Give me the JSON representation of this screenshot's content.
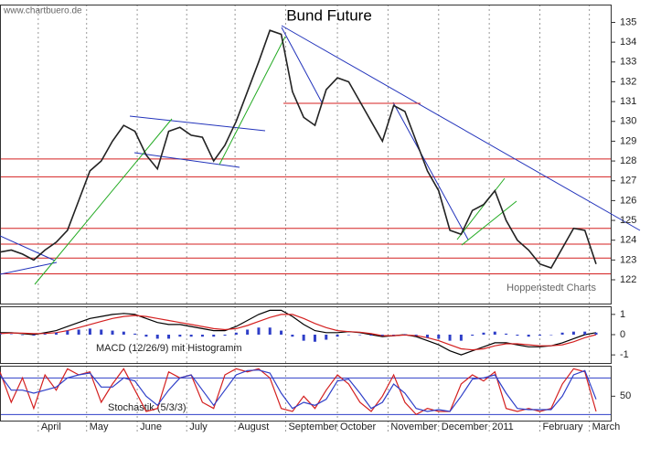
{
  "watermark": "www.chartbuero.de",
  "source": "Hoppenstedt Charts",
  "chart_data": [
    {
      "type": "line",
      "title": "Bund Future",
      "x": [
        0,
        1,
        2,
        3,
        4,
        5,
        6,
        7,
        8,
        9,
        10,
        11,
        12,
        13,
        14,
        15,
        16,
        17,
        18,
        19,
        20,
        21,
        22,
        23,
        24,
        25,
        26,
        27,
        28,
        29,
        30,
        31,
        32,
        33,
        34,
        35,
        36,
        37,
        38,
        39,
        40,
        41,
        42,
        43,
        44,
        45,
        46,
        47,
        48,
        49,
        50,
        51,
        52,
        53
      ],
      "xlim": [
        0,
        54.3
      ],
      "series": [
        {
          "color": "#222222",
          "values": [
            123.4,
            123.5,
            123.3,
            123.0,
            123.5,
            123.9,
            124.5,
            126.0,
            127.5,
            128.0,
            129.0,
            129.8,
            129.5,
            128.3,
            127.6,
            129.5,
            129.7,
            129.3,
            129.2,
            128.0,
            128.8,
            130.0,
            131.5,
            133.0,
            134.6,
            134.4,
            131.5,
            130.2,
            129.8,
            131.6,
            132.2,
            132.0,
            131.0,
            130.0,
            129.0,
            130.8,
            130.5,
            129.0,
            127.5,
            126.5,
            124.5,
            124.3,
            125.5,
            125.8,
            126.5,
            125.0,
            124.0,
            123.5,
            122.8,
            122.6,
            123.6,
            124.6,
            124.5,
            122.8
          ]
        }
      ],
      "hlines": [
        128.1,
        127.2,
        124.6,
        123.8,
        123.1,
        122.3
      ],
      "hline_color": "#d42020",
      "ylim": [
        120.8,
        135.9
      ],
      "yticks": [
        122,
        123,
        124,
        125,
        126,
        127,
        128,
        129,
        130,
        131,
        132,
        133,
        134,
        135
      ]
    },
    {
      "type": "line",
      "title": "MACD (12/26/9) mit Histogramm",
      "series": [
        {
          "color": "#000000",
          "values": [
            0.1,
            0.1,
            0.05,
            0,
            0.1,
            0.2,
            0.4,
            0.6,
            0.8,
            0.9,
            1.0,
            1.05,
            1.0,
            0.8,
            0.6,
            0.5,
            0.5,
            0.4,
            0.3,
            0.2,
            0.2,
            0.4,
            0.7,
            1.0,
            1.2,
            1.2,
            0.9,
            0.5,
            0.2,
            0.1,
            0.1,
            0.15,
            0.1,
            0,
            -0.1,
            -0.05,
            0,
            -0.1,
            -0.3,
            -0.5,
            -0.8,
            -1.0,
            -0.8,
            -0.6,
            -0.4,
            -0.4,
            -0.5,
            -0.6,
            -0.6,
            -0.55,
            -0.4,
            -0.2,
            0,
            0.1
          ]
        },
        {
          "color": "#d42020",
          "values": [
            0.05,
            0.08,
            0.07,
            0.05,
            0.06,
            0.1,
            0.2,
            0.35,
            0.5,
            0.65,
            0.8,
            0.9,
            0.95,
            0.9,
            0.8,
            0.7,
            0.6,
            0.5,
            0.4,
            0.3,
            0.25,
            0.3,
            0.45,
            0.65,
            0.85,
            1.0,
            1.0,
            0.8,
            0.55,
            0.35,
            0.2,
            0.15,
            0.12,
            0.05,
            -0.05,
            -0.05,
            -0.02,
            -0.05,
            -0.15,
            -0.3,
            -0.5,
            -0.7,
            -0.75,
            -0.7,
            -0.55,
            -0.45,
            -0.45,
            -0.5,
            -0.55,
            -0.55,
            -0.5,
            -0.35,
            -0.15,
            0.0
          ]
        },
        {
          "type": "bar",
          "color": "#2f3fc8",
          "values": [
            0.05,
            0.02,
            -0.02,
            -0.05,
            0.04,
            0.1,
            0.2,
            0.25,
            0.3,
            0.25,
            0.2,
            0.15,
            0.05,
            -0.1,
            -0.2,
            -0.2,
            -0.1,
            -0.1,
            -0.1,
            -0.1,
            -0.05,
            0.1,
            0.25,
            0.35,
            0.35,
            0.2,
            -0.1,
            -0.3,
            -0.35,
            -0.25,
            -0.1,
            0,
            -0.02,
            -0.05,
            -0.05,
            0,
            0.02,
            -0.05,
            -0.15,
            -0.2,
            -0.3,
            -0.3,
            -0.05,
            0.1,
            0.15,
            0.05,
            -0.05,
            -0.1,
            -0.05,
            0,
            0.1,
            0.15,
            0.15,
            0.1
          ]
        }
      ],
      "ylim": [
        -1.4,
        1.4
      ],
      "yticks": [
        1,
        0,
        -1
      ]
    },
    {
      "type": "line",
      "title": "Stochastik (5/3/3)",
      "series": [
        {
          "color": "#d42020",
          "values": [
            90,
            40,
            80,
            30,
            85,
            60,
            95,
            85,
            90,
            40,
            70,
            95,
            60,
            25,
            30,
            90,
            80,
            85,
            40,
            30,
            85,
            95,
            90,
            95,
            80,
            30,
            25,
            50,
            30,
            60,
            85,
            70,
            40,
            25,
            50,
            85,
            40,
            20,
            30,
            25,
            25,
            70,
            85,
            75,
            90,
            30,
            25,
            30,
            25,
            30,
            70,
            95,
            90,
            25
          ]
        },
        {
          "color": "#2f3fc8",
          "values": [
            85,
            60,
            60,
            55,
            60,
            65,
            80,
            85,
            88,
            65,
            65,
            80,
            75,
            50,
            35,
            60,
            80,
            85,
            60,
            35,
            60,
            85,
            92,
            93,
            88,
            55,
            30,
            40,
            35,
            45,
            75,
            78,
            55,
            30,
            40,
            70,
            55,
            30,
            25,
            28,
            25,
            50,
            78,
            80,
            85,
            55,
            30,
            28,
            28,
            28,
            50,
            85,
            92,
            45
          ]
        }
      ],
      "hlines": [
        80,
        20
      ],
      "hline_color": "#2f3fc8",
      "ylim": [
        10,
        100
      ],
      "yticks": [
        50
      ],
      "xticks": [
        {
          "value": 3.4,
          "label": "April"
        },
        {
          "value": 7.7,
          "label": "May"
        },
        {
          "value": 12.2,
          "label": "June"
        },
        {
          "value": 16.6,
          "label": "July"
        },
        {
          "value": 20.9,
          "label": "August"
        },
        {
          "value": 25.4,
          "label": "September"
        },
        {
          "value": 30,
          "label": "October"
        },
        {
          "value": 34.5,
          "label": "November"
        },
        {
          "value": 39,
          "label": "December"
        },
        {
          "value": 43.5,
          "label": "2011"
        },
        {
          "value": 48,
          "label": "February"
        },
        {
          "value": 52.4,
          "label": "March"
        }
      ]
    }
  ]
}
